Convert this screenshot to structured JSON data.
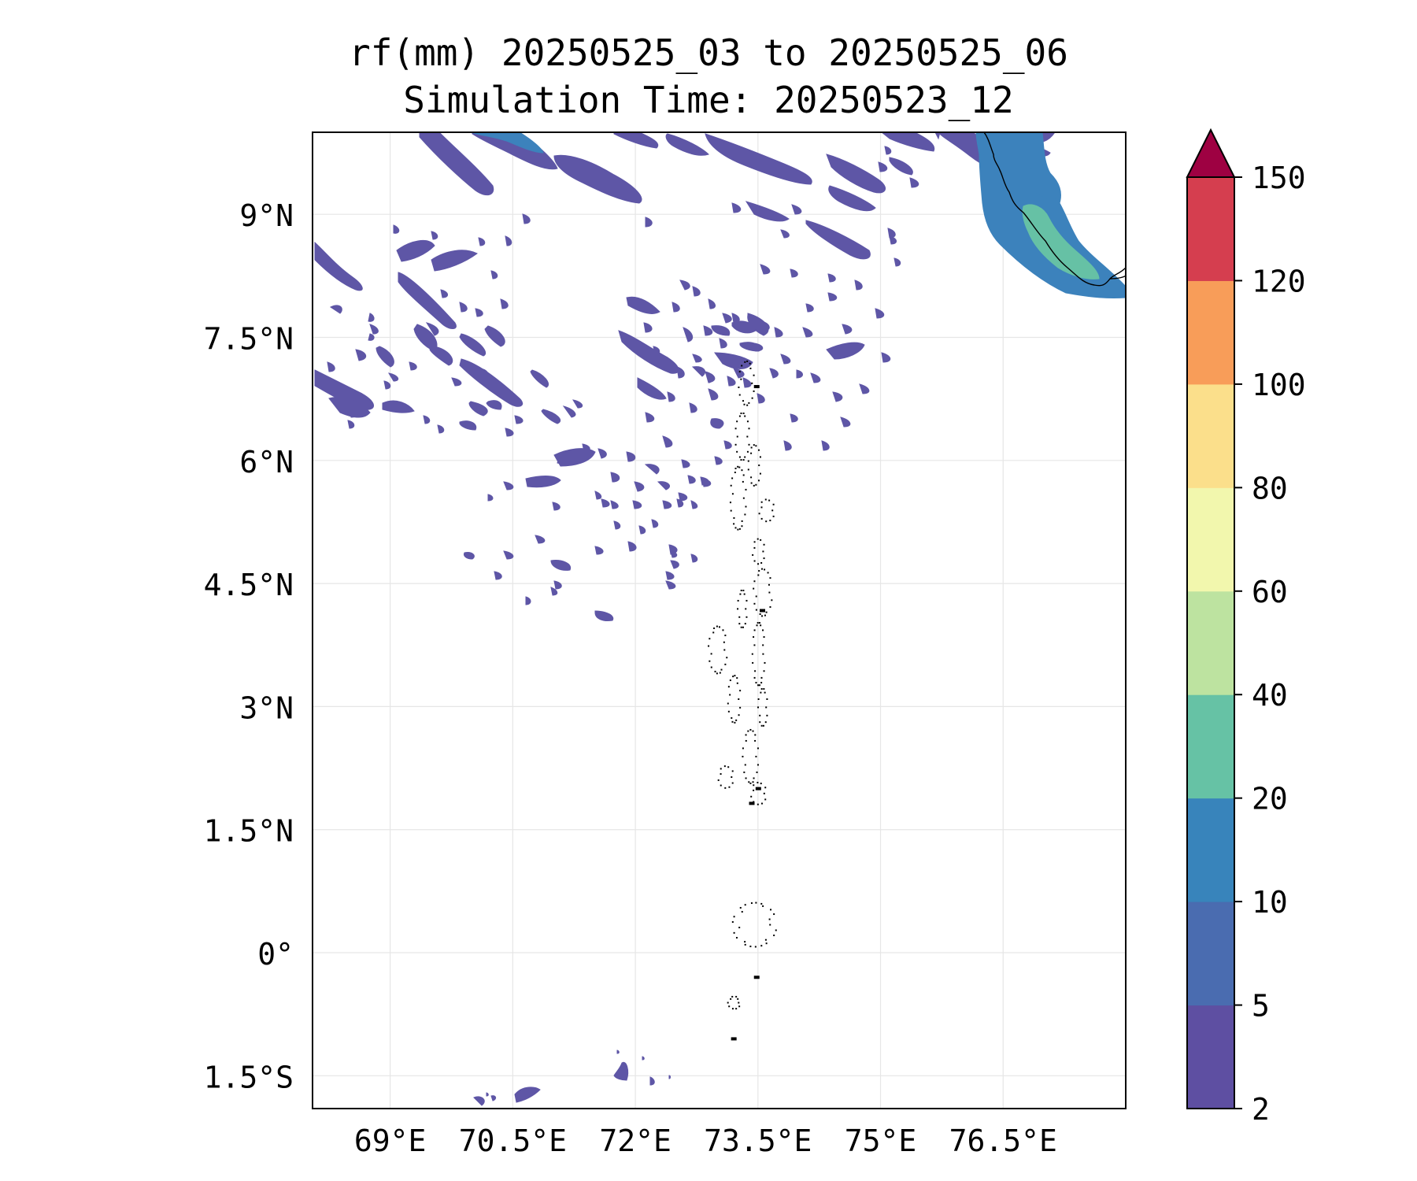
{
  "title": {
    "line1": "rf(mm) 20250525_03 to 20250525_06",
    "line2": "Simulation Time: 20250523_12"
  },
  "map": {
    "extent": {
      "lon_min": 68.05,
      "lon_max": 78.0,
      "lat_min": -1.9,
      "lat_max": 10.0
    },
    "lat_ticks": [
      {
        "value": 9,
        "label": "9°N"
      },
      {
        "value": 7.5,
        "label": "7.5°N"
      },
      {
        "value": 6,
        "label": "6°N"
      },
      {
        "value": 4.5,
        "label": "4.5°N"
      },
      {
        "value": 3,
        "label": "3°N"
      },
      {
        "value": 1.5,
        "label": "1.5°N"
      },
      {
        "value": 0,
        "label": "0°"
      },
      {
        "value": -1.5,
        "label": "1.5°S"
      }
    ],
    "lon_ticks": [
      {
        "value": 69,
        "label": "69°E"
      },
      {
        "value": 70.5,
        "label": "70.5°E"
      },
      {
        "value": 72,
        "label": "72°E"
      },
      {
        "value": 73.5,
        "label": "73.5°E"
      },
      {
        "value": 75,
        "label": "75°E"
      },
      {
        "value": 76.5,
        "label": "76.5°E"
      }
    ],
    "gridlines": true,
    "colorbar": {
      "levels": [
        "2",
        "5",
        "10",
        "20",
        "40",
        "60",
        "80",
        "100",
        "120",
        "150"
      ],
      "colors": [
        "#5e4fa2",
        "#4a6cb0",
        "#3884bb",
        "#66c2a5",
        "#bde3a0",
        "#f2f7ad",
        "#fbdf8b",
        "#f89d59",
        "#d53e4f"
      ],
      "extend_color": "#9e0142",
      "extend": "max"
    },
    "rain_colors": {
      "light": "#5e56a6",
      "moderate": "#3c82bc",
      "heavy": "#66c1a5"
    }
  }
}
